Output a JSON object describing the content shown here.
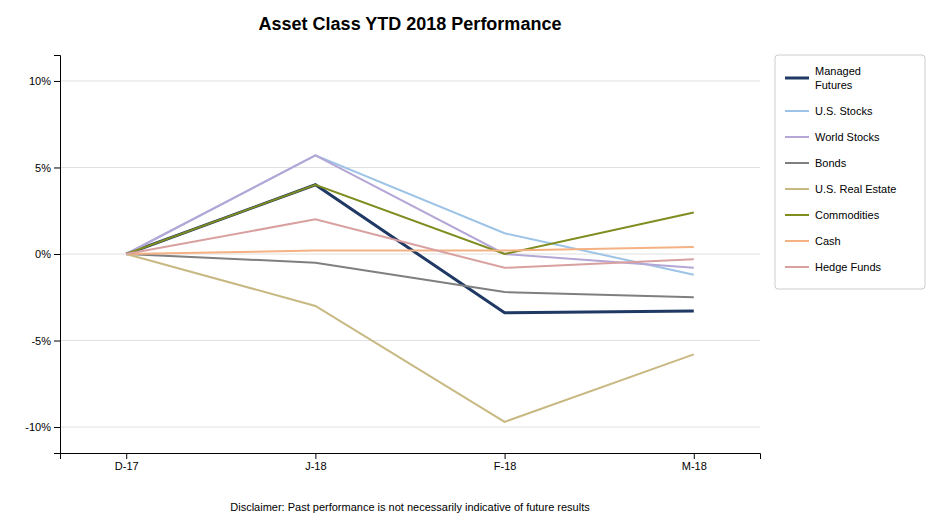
{
  "chart_data": {
    "type": "line",
    "title": "Asset Class YTD 2018 Performance",
    "annotations": [
      "Disclaimer: Past performance is not necessarily indicative of future results"
    ],
    "categories": [
      "D-17",
      "J-18",
      "F-18",
      "M-18"
    ],
    "series": [
      {
        "name": "Managed\nFutures",
        "color": "#1f3864",
        "values": [
          0.0,
          0.04,
          -0.034,
          -0.033
        ]
      },
      {
        "name": "U.S. Stocks",
        "color": "#9dc3e6",
        "values": [
          0.0,
          0.057,
          0.012,
          -0.012
        ]
      },
      {
        "name": "World Stocks",
        "color": "#b4a7d6",
        "values": [
          0.0,
          0.057,
          0.0,
          -0.008
        ]
      },
      {
        "name": "Bonds",
        "color": "#7f7f7f",
        "values": [
          0.0,
          -0.005,
          -0.022,
          -0.025
        ]
      },
      {
        "name": "U.S. Real Estate",
        "color": "#c8b882",
        "values": [
          0.0,
          -0.03,
          -0.097,
          -0.058
        ]
      },
      {
        "name": "Commodities",
        "color": "#7f8c1f",
        "values": [
          0.0,
          0.04,
          0.0,
          0.024
        ]
      },
      {
        "name": "Cash",
        "color": "#f4b183",
        "values": [
          0.0,
          0.002,
          0.002,
          0.004
        ]
      },
      {
        "name": "Hedge Funds",
        "color": "#d9a0a0",
        "values": [
          0.0,
          0.02,
          -0.008,
          -0.003
        ]
      }
    ],
    "ylim": [
      -0.115,
      0.115
    ],
    "yticks": [
      {
        "value": -0.1,
        "label": "-10%"
      },
      {
        "value": -0.05,
        "label": "-5%"
      },
      {
        "value": 0.0,
        "label": "0%"
      },
      {
        "value": 0.05,
        "label": "5%"
      },
      {
        "value": 0.1,
        "label": "10%"
      }
    ],
    "grid": true,
    "legend": "right"
  }
}
